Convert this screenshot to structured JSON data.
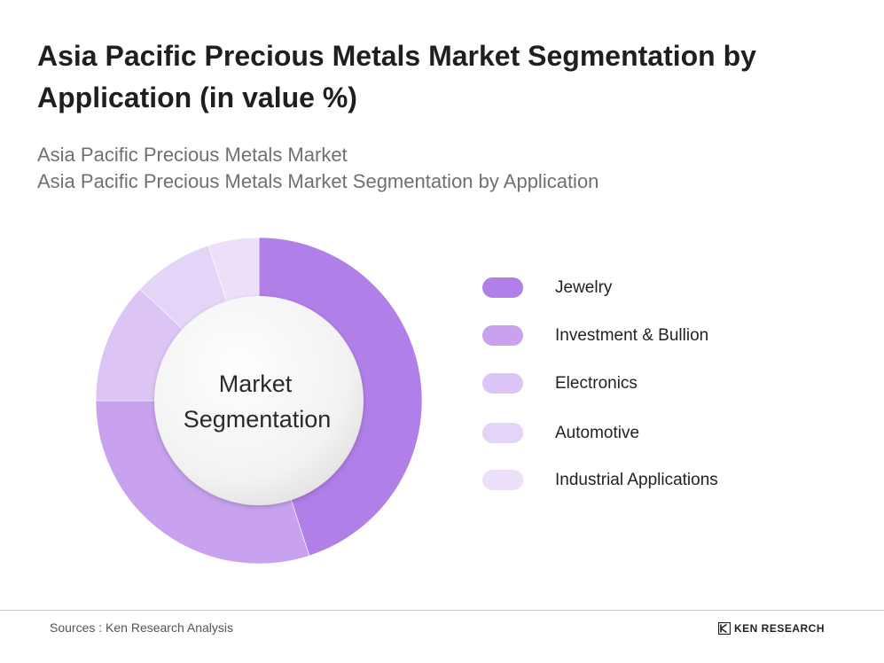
{
  "title": "Asia Pacific Precious Metals Market Segmentation by Application (in value %)",
  "subtitle_line1": "Asia Pacific Precious Metals Market",
  "subtitle_line2": "Asia Pacific Precious Metals Market Segmentation by Application",
  "center_label_line1": "Market",
  "center_label_line2": "Segmentation",
  "source": "Sources : Ken Research Analysis",
  "brand": "KEN RESEARCH",
  "chart_data": {
    "type": "pie",
    "title": "Asia Pacific Precious Metals Market Segmentation by Application (in value %)",
    "categories": [
      "Jewelry",
      "Investment & Bullion",
      "Electronics",
      "Automotive",
      "Industrial Applications"
    ],
    "values": [
      45,
      30,
      12,
      8,
      5
    ],
    "colors": [
      "#b07fe8",
      "#c8a2ef",
      "#dcc5f5",
      "#e4d4f8",
      "#ebdff9"
    ],
    "legend_position": "right",
    "donut": true
  }
}
